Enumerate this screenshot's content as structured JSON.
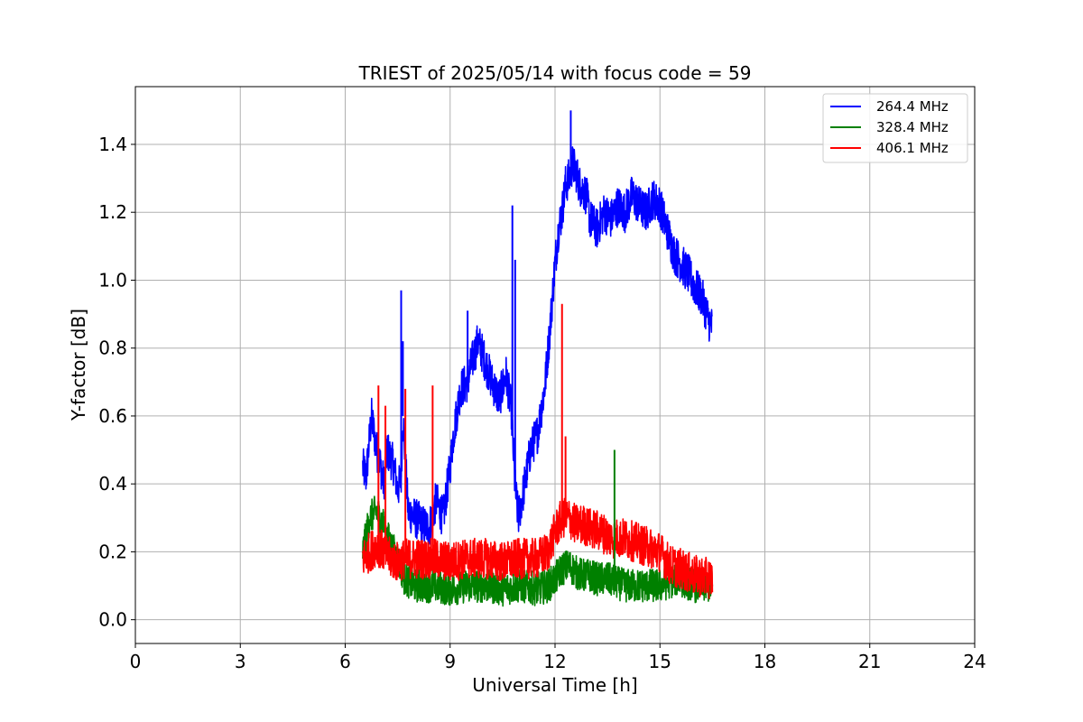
{
  "chart_data": {
    "type": "line",
    "title": "TRIEST of 2025/05/14 with focus code = 59",
    "xlabel": "Universal Time [h]",
    "ylabel": "Y-factor [dB]",
    "xlim": [
      0,
      24
    ],
    "ylim": [
      -0.07,
      1.57
    ],
    "xticks": [
      0,
      3,
      6,
      9,
      12,
      15,
      18,
      21,
      24
    ],
    "xtick_labels": [
      "0",
      "3",
      "6",
      "9",
      "12",
      "15",
      "18",
      "21",
      "24"
    ],
    "yticks": [
      0.0,
      0.2,
      0.4,
      0.6,
      0.8,
      1.0,
      1.2,
      1.4
    ],
    "ytick_labels": [
      "0.0",
      "0.2",
      "0.4",
      "0.6",
      "0.8",
      "1.0",
      "1.2",
      "1.4"
    ],
    "grid": true,
    "legend_position": "top-right",
    "series": [
      {
        "name": "264.4 MHz",
        "color": "#0000ff",
        "x": [
          6.5,
          6.6,
          6.75,
          6.9,
          7.0,
          7.1,
          7.2,
          7.4,
          7.5,
          7.6,
          7.65,
          7.8,
          8.0,
          8.2,
          8.4,
          8.6,
          8.8,
          9.0,
          9.1,
          9.3,
          9.5,
          9.6,
          9.8,
          10.0,
          10.2,
          10.4,
          10.6,
          10.75,
          10.85,
          10.95,
          11.1,
          11.3,
          11.5,
          11.7,
          11.85,
          12.0,
          12.1,
          12.2,
          12.3,
          12.4,
          12.5,
          12.6,
          12.7,
          12.9,
          13.0,
          13.2,
          13.4,
          13.6,
          13.8,
          14.0,
          14.2,
          14.4,
          14.6,
          14.8,
          15.0,
          15.2,
          15.4,
          15.6,
          15.8,
          16.0,
          16.2,
          16.4,
          16.5
        ],
        "values": [
          0.45,
          0.42,
          0.6,
          0.5,
          0.46,
          0.4,
          0.5,
          0.45,
          0.38,
          0.42,
          0.6,
          0.32,
          0.3,
          0.28,
          0.27,
          0.35,
          0.3,
          0.45,
          0.55,
          0.68,
          0.7,
          0.75,
          0.82,
          0.76,
          0.7,
          0.65,
          0.72,
          0.62,
          0.4,
          0.3,
          0.38,
          0.5,
          0.55,
          0.68,
          0.85,
          1.05,
          1.15,
          1.2,
          1.28,
          1.3,
          1.34,
          1.32,
          1.28,
          1.25,
          1.18,
          1.15,
          1.2,
          1.18,
          1.22,
          1.2,
          1.25,
          1.22,
          1.2,
          1.24,
          1.22,
          1.15,
          1.08,
          1.05,
          1.02,
          0.98,
          0.95,
          0.88,
          0.86
        ],
        "noise": 0.06
      },
      {
        "name": "328.4 MHz",
        "color": "#008000",
        "x": [
          6.5,
          6.7,
          6.9,
          7.1,
          7.3,
          7.5,
          7.7,
          8.0,
          8.5,
          9.0,
          9.5,
          10.0,
          10.5,
          11.0,
          11.5,
          11.8,
          12.0,
          12.2,
          12.4,
          12.6,
          12.8,
          13.0,
          13.2,
          13.5,
          14.0,
          14.5,
          15.0,
          15.5,
          16.0,
          16.5
        ],
        "values": [
          0.2,
          0.3,
          0.32,
          0.28,
          0.22,
          0.18,
          0.12,
          0.1,
          0.1,
          0.09,
          0.1,
          0.1,
          0.09,
          0.1,
          0.09,
          0.1,
          0.12,
          0.15,
          0.16,
          0.14,
          0.13,
          0.13,
          0.12,
          0.12,
          0.1,
          0.1,
          0.1,
          0.12,
          0.1,
          0.1
        ],
        "noise": 0.05
      },
      {
        "name": "406.1 MHz",
        "color": "#ff0000",
        "x": [
          6.5,
          6.7,
          6.9,
          7.1,
          7.3,
          7.5,
          7.7,
          8.0,
          8.5,
          9.0,
          9.5,
          10.0,
          10.5,
          11.0,
          11.5,
          11.8,
          12.0,
          12.2,
          12.4,
          12.6,
          12.8,
          13.0,
          13.3,
          13.6,
          14.0,
          14.5,
          15.0,
          15.3,
          15.6,
          16.0,
          16.5
        ],
        "values": [
          0.18,
          0.2,
          0.22,
          0.2,
          0.18,
          0.17,
          0.18,
          0.18,
          0.18,
          0.17,
          0.18,
          0.18,
          0.17,
          0.18,
          0.18,
          0.2,
          0.26,
          0.3,
          0.3,
          0.28,
          0.28,
          0.27,
          0.26,
          0.24,
          0.24,
          0.22,
          0.2,
          0.16,
          0.15,
          0.13,
          0.12
        ],
        "noise": 0.06
      }
    ],
    "spikes": [
      {
        "series": "264.4 MHz",
        "x": 7.6,
        "y": 0.97
      },
      {
        "series": "264.4 MHz",
        "x": 7.65,
        "y": 0.82
      },
      {
        "series": "264.4 MHz",
        "x": 10.78,
        "y": 1.22
      },
      {
        "series": "264.4 MHz",
        "x": 10.86,
        "y": 1.06
      },
      {
        "series": "264.4 MHz",
        "x": 12.45,
        "y": 1.5
      },
      {
        "series": "264.4 MHz",
        "x": 9.5,
        "y": 0.91
      },
      {
        "series": "328.4 MHz",
        "x": 13.7,
        "y": 0.5
      },
      {
        "series": "406.1 MHz",
        "x": 6.95,
        "y": 0.69
      },
      {
        "series": "406.1 MHz",
        "x": 7.15,
        "y": 0.63
      },
      {
        "series": "406.1 MHz",
        "x": 7.72,
        "y": 0.68
      },
      {
        "series": "406.1 MHz",
        "x": 8.5,
        "y": 0.69
      },
      {
        "series": "406.1 MHz",
        "x": 12.2,
        "y": 0.93
      },
      {
        "series": "406.1 MHz",
        "x": 12.3,
        "y": 0.54
      }
    ]
  }
}
